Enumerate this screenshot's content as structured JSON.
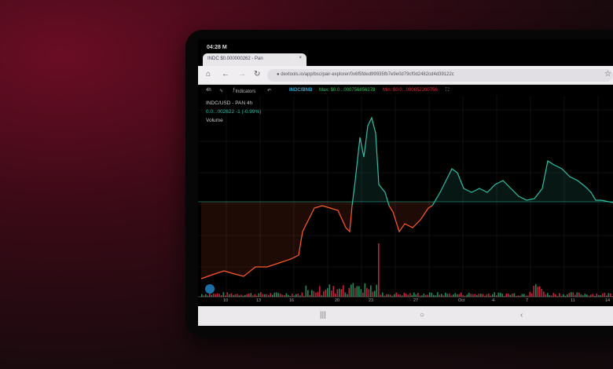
{
  "status_bar": {
    "time": "04:28 M"
  },
  "browser": {
    "tab_title": "INDC $0.000000262 - Pan",
    "tab_close": "×",
    "new_tab": "+",
    "url": "dextools.io/app/bsc/pair-explorer/0x6f5fded99935fb7e9e0d79cf0d2482cd4d39122c"
  },
  "toolbar": {
    "interval": "4h",
    "indicators": "Indicators",
    "pair": "INDC/BNB",
    "max": "Max: $0.0...000756856278",
    "min": "Min: $0.0...000652200756"
  },
  "legend": {
    "symbol": "INDC/USD - PAN  4h",
    "price": "0.0...002622  -1 (-0.99%)",
    "volume": "Volume"
  },
  "x_axis": {
    "labels": [
      "10",
      "13",
      "16",
      "20",
      "23",
      "27",
      "Oct",
      "4",
      "7",
      "11",
      "14"
    ]
  },
  "colors": {
    "up": "#2fc1a6",
    "down": "#ff5a2a",
    "vol_up": "#1f8a5a",
    "vol_down": "#c0223a"
  },
  "icons": [
    "home-icon",
    "back-icon",
    "forward-icon",
    "reload-icon",
    "lock-icon",
    "star-icon",
    "fullscreen-icon",
    "undo-icon"
  ]
}
